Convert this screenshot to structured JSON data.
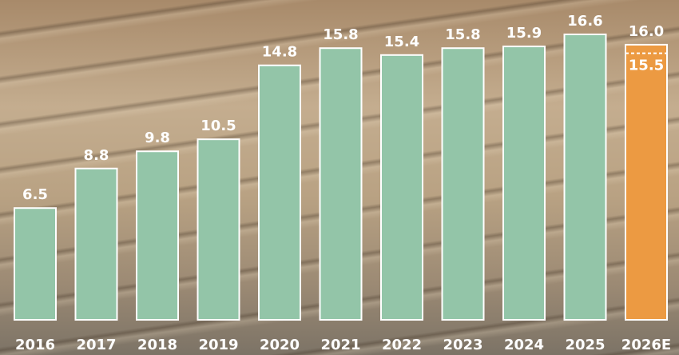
{
  "chart_data": {
    "type": "bar",
    "categories": [
      "2016",
      "2017",
      "2018",
      "2019",
      "2020",
      "2021",
      "2022",
      "2023",
      "2024",
      "2025",
      "2026E"
    ],
    "values": [
      6.5,
      8.8,
      9.8,
      10.5,
      14.8,
      15.8,
      15.4,
      15.8,
      15.9,
      16.6,
      16.0
    ],
    "value_labels": [
      "6.5",
      "8.8",
      "9.8",
      "10.5",
      "14.8",
      "15.8",
      "15.4",
      "15.8",
      "15.9",
      "16.6",
      "16.0"
    ],
    "colors": [
      "#93c5a8",
      "#93c5a8",
      "#93c5a8",
      "#93c5a8",
      "#93c5a8",
      "#93c5a8",
      "#93c5a8",
      "#93c5a8",
      "#93c5a8",
      "#93c5a8",
      "#ec9a42"
    ],
    "estimate_low": 15.5,
    "estimate_low_label": "15.5",
    "ylim": [
      0,
      18.6
    ]
  }
}
